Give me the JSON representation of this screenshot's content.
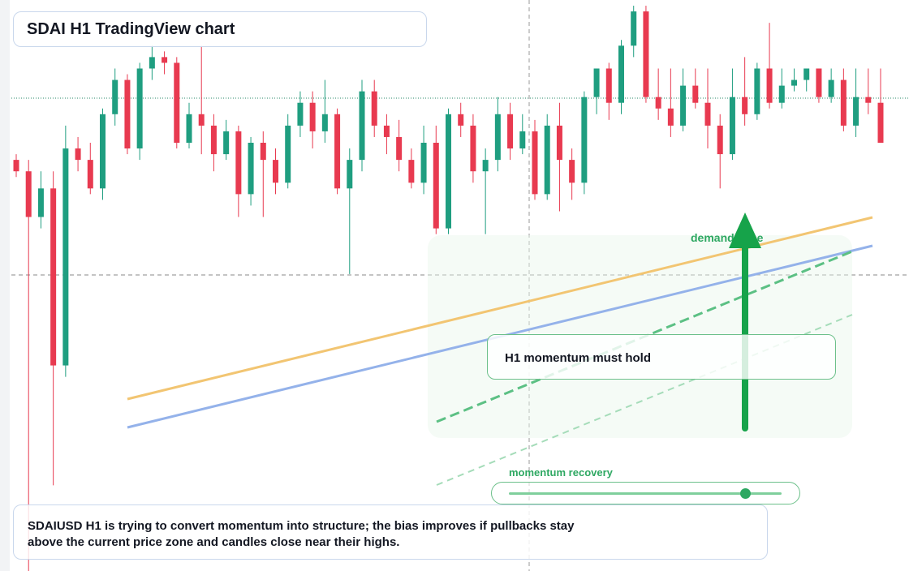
{
  "chart_data": {
    "type": "candlestick",
    "title": "SDAI H1 TradingView chart",
    "up_color": "#1f9e80",
    "down_color": "#e83a50",
    "ylim": [
      0,
      100
    ],
    "open": [
      72,
      70,
      62,
      67,
      36,
      74,
      72,
      67,
      80,
      86,
      74,
      88,
      90,
      89,
      75,
      80,
      78,
      73,
      77,
      66,
      75,
      72,
      68,
      78,
      82,
      77,
      80,
      67,
      72,
      84,
      78,
      76,
      72,
      68,
      75,
      60,
      80,
      78,
      70,
      72,
      80,
      74,
      77,
      66,
      78,
      72,
      68,
      83,
      88,
      82,
      92,
      98,
      83,
      81,
      78,
      85,
      82,
      78,
      73,
      83,
      80,
      88,
      82,
      85,
      86,
      88,
      83,
      86,
      78,
      83,
      82
    ],
    "high": [
      73,
      72,
      70,
      70,
      78,
      76,
      75,
      81,
      88,
      87,
      89,
      92,
      91,
      90,
      82,
      92,
      80,
      79,
      78,
      76,
      77,
      74,
      80,
      84,
      84,
      86,
      81,
      74,
      86,
      86,
      80,
      79,
      74,
      78,
      78,
      81,
      82,
      80,
      74,
      83,
      82,
      80,
      79,
      80,
      82,
      74,
      84,
      88,
      89,
      93,
      99,
      99,
      88,
      88,
      88,
      88,
      88,
      80,
      88,
      90,
      89,
      96,
      88,
      88,
      88,
      88,
      88,
      88,
      88,
      88,
      88
    ],
    "low": [
      69,
      0,
      60,
      15,
      34,
      70,
      66,
      65,
      78,
      73,
      72,
      86,
      87,
      74,
      74,
      73,
      70,
      72,
      62,
      64,
      62,
      66,
      67,
      76,
      74,
      75,
      66,
      52,
      70,
      76,
      73,
      70,
      67,
      66,
      59,
      59,
      76,
      68,
      59,
      70,
      72,
      73,
      65,
      65,
      63,
      65,
      66,
      80,
      79,
      80,
      90,
      82,
      79,
      76,
      77,
      81,
      74,
      67,
      72,
      78,
      79,
      81,
      81,
      84,
      84,
      82,
      82,
      77,
      76,
      80,
      75
    ],
    "close": [
      70,
      62,
      67,
      36,
      74,
      72,
      67,
      80,
      86,
      74,
      88,
      90,
      89,
      75,
      80,
      78,
      73,
      77,
      66,
      75,
      72,
      68,
      78,
      82,
      77,
      80,
      67,
      72,
      84,
      78,
      76,
      72,
      68,
      75,
      60,
      80,
      78,
      70,
      72,
      80,
      74,
      77,
      66,
      78,
      72,
      68,
      83,
      88,
      82,
      92,
      98,
      83,
      81,
      78,
      85,
      82,
      78,
      73,
      83,
      80,
      88,
      82,
      85,
      86,
      88,
      83,
      86,
      78,
      83,
      82,
      75
    ],
    "annotations": {
      "zone": "demand zone",
      "hold": "H1 momentum must hold",
      "recovery": "momentum recovery"
    },
    "caption": [
      "SDAIUSD H1 is trying to convert momentum into structure; the bias improves if pullbacks stay",
      "above the current price zone and candles close near their highs."
    ]
  }
}
